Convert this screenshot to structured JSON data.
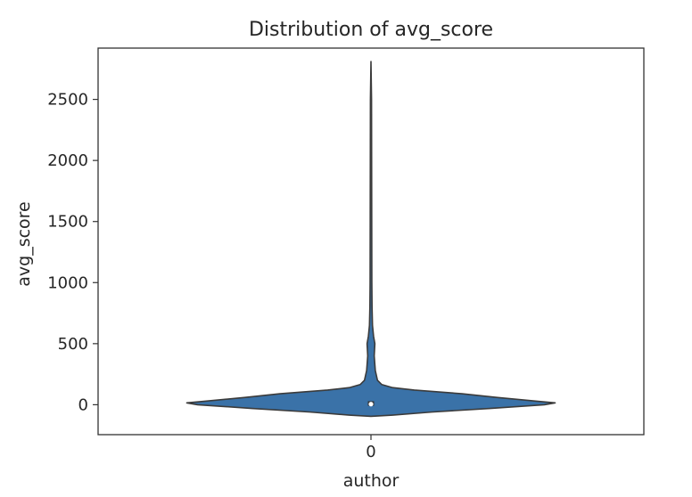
{
  "chart_data": {
    "type": "violin",
    "title": "Distribution of avg_score",
    "xlabel": "author",
    "ylabel": "avg_score",
    "categories": [
      "0"
    ],
    "ylim": [
      -245,
      2920
    ],
    "yticks": [
      0,
      500,
      1000,
      1500,
      2000,
      2500
    ],
    "grid": false,
    "legend": "none",
    "fill_color": "#3a72a8",
    "outline_color": "#3b3b3b",
    "series": [
      {
        "category": "0",
        "density_profile": [
          {
            "y": -95,
            "half_width": 0.0
          },
          {
            "y": -85,
            "half_width": 0.1
          },
          {
            "y": -60,
            "half_width": 0.28
          },
          {
            "y": -30,
            "half_width": 0.55
          },
          {
            "y": 0,
            "half_width": 0.8
          },
          {
            "y": 15,
            "half_width": 0.85
          },
          {
            "y": 30,
            "half_width": 0.76
          },
          {
            "y": 60,
            "half_width": 0.58
          },
          {
            "y": 90,
            "half_width": 0.42
          },
          {
            "y": 120,
            "half_width": 0.2
          },
          {
            "y": 140,
            "half_width": 0.1
          },
          {
            "y": 165,
            "half_width": 0.05
          },
          {
            "y": 200,
            "half_width": 0.03
          },
          {
            "y": 280,
            "half_width": 0.02
          },
          {
            "y": 400,
            "half_width": 0.015
          },
          {
            "y": 500,
            "half_width": 0.018
          },
          {
            "y": 560,
            "half_width": 0.012
          },
          {
            "y": 650,
            "half_width": 0.007
          },
          {
            "y": 800,
            "half_width": 0.005
          },
          {
            "y": 1000,
            "half_width": 0.004
          },
          {
            "y": 1500,
            "half_width": 0.0035
          },
          {
            "y": 2000,
            "half_width": 0.003
          },
          {
            "y": 2500,
            "half_width": 0.0025
          },
          {
            "y": 2810,
            "half_width": 0.0
          }
        ],
        "quartiles": {
          "q1": -5,
          "median": 5,
          "q3": 25
        }
      }
    ]
  }
}
